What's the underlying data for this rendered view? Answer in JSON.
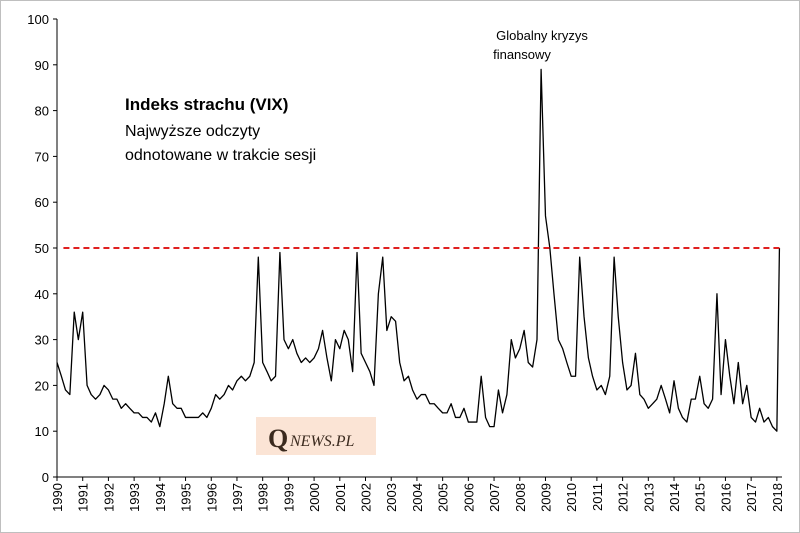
{
  "chart_data": {
    "type": "line",
    "title": "Indeks strachu (VIX)",
    "subtitle": [
      "Najwyższe odczyty",
      "odnotowane w trakcie sesji"
    ],
    "annotation": [
      "Globalny kryzys",
      "finansowy"
    ],
    "logo": {
      "initial": "Q",
      "rest": "NEWS.PL"
    },
    "x": [
      1990,
      1990.17,
      1990.33,
      1990.5,
      1990.67,
      1990.83,
      1991,
      1991.17,
      1991.33,
      1991.5,
      1991.67,
      1991.83,
      1992,
      1992.17,
      1992.33,
      1992.5,
      1992.67,
      1992.83,
      1993,
      1993.17,
      1993.33,
      1993.5,
      1993.67,
      1993.83,
      1994,
      1994.17,
      1994.33,
      1994.5,
      1994.67,
      1994.83,
      1995,
      1995.17,
      1995.33,
      1995.5,
      1995.67,
      1995.83,
      1996,
      1996.17,
      1996.33,
      1996.5,
      1996.67,
      1996.83,
      1997,
      1997.17,
      1997.33,
      1997.5,
      1997.67,
      1997.83,
      1998,
      1998.17,
      1998.33,
      1998.5,
      1998.67,
      1998.83,
      1999,
      1999.17,
      1999.33,
      1999.5,
      1999.67,
      1999.83,
      2000,
      2000.17,
      2000.33,
      2000.5,
      2000.67,
      2000.83,
      2001,
      2001.17,
      2001.33,
      2001.5,
      2001.67,
      2001.83,
      2002,
      2002.17,
      2002.33,
      2002.5,
      2002.67,
      2002.83,
      2003,
      2003.17,
      2003.33,
      2003.5,
      2003.67,
      2003.83,
      2004,
      2004.17,
      2004.33,
      2004.5,
      2004.67,
      2004.83,
      2005,
      2005.17,
      2005.33,
      2005.5,
      2005.67,
      2005.83,
      2006,
      2006.17,
      2006.33,
      2006.5,
      2006.67,
      2006.83,
      2007,
      2007.17,
      2007.33,
      2007.5,
      2007.67,
      2007.83,
      2008,
      2008.17,
      2008.33,
      2008.5,
      2008.67,
      2008.83,
      2009,
      2009.17,
      2009.33,
      2009.5,
      2009.67,
      2009.83,
      2010,
      2010.17,
      2010.33,
      2010.5,
      2010.67,
      2010.83,
      2011,
      2011.17,
      2011.33,
      2011.5,
      2011.67,
      2011.83,
      2012,
      2012.17,
      2012.33,
      2012.5,
      2012.67,
      2012.83,
      2013,
      2013.17,
      2013.33,
      2013.5,
      2013.67,
      2013.83,
      2014,
      2014.17,
      2014.33,
      2014.5,
      2014.67,
      2014.83,
      2015,
      2015.17,
      2015.33,
      2015.5,
      2015.67,
      2015.83,
      2016,
      2016.17,
      2016.33,
      2016.5,
      2016.67,
      2016.83,
      2017,
      2017.17,
      2017.33,
      2017.5,
      2017.67,
      2017.83,
      2018,
      2018.1
    ],
    "series": [
      {
        "name": "VIX",
        "color": "#000000",
        "values": [
          25,
          22,
          19,
          18,
          36,
          30,
          36,
          20,
          18,
          17,
          18,
          20,
          19,
          17,
          17,
          15,
          16,
          15,
          14,
          14,
          13,
          13,
          12,
          14,
          11,
          16,
          22,
          16,
          15,
          15,
          13,
          13,
          13,
          13,
          14,
          13,
          15,
          18,
          17,
          18,
          20,
          19,
          21,
          22,
          21,
          22,
          25,
          48,
          25,
          23,
          21,
          22,
          49,
          30,
          28,
          30,
          27,
          25,
          26,
          25,
          26,
          28,
          32,
          26,
          21,
          30,
          28,
          32,
          30,
          23,
          49,
          27,
          25,
          23,
          20,
          40,
          48,
          32,
          35,
          34,
          25,
          21,
          22,
          19,
          17,
          18,
          18,
          16,
          16,
          15,
          14,
          14,
          16,
          13,
          13,
          15,
          12,
          12,
          12,
          22,
          13,
          11,
          11,
          19,
          14,
          18,
          30,
          26,
          28,
          32,
          25,
          24,
          30,
          89,
          57,
          50,
          40,
          30,
          28,
          25,
          22,
          22,
          48,
          35,
          26,
          22,
          19,
          20,
          18,
          22,
          48,
          35,
          25,
          19,
          20,
          27,
          18,
          17,
          15,
          16,
          17,
          20,
          17,
          14,
          21,
          15,
          13,
          12,
          17,
          17,
          22,
          16,
          15,
          17,
          40,
          18,
          30,
          22,
          16,
          25,
          16,
          20,
          13,
          12,
          15,
          12,
          13,
          11,
          10,
          50
        ]
      }
    ],
    "reference_line": {
      "value": 50,
      "color": "#e02020",
      "x_range": [
        1990.25,
        2018.1
      ]
    },
    "xlim": [
      1990,
      2018.2
    ],
    "xticks": [
      1990,
      1991,
      1992,
      1993,
      1994,
      1995,
      1996,
      1997,
      1998,
      1999,
      2000,
      2001,
      2002,
      2003,
      2004,
      2005,
      2006,
      2007,
      2008,
      2009,
      2010,
      2011,
      2012,
      2013,
      2014,
      2015,
      2016,
      2017,
      2018
    ],
    "ylim": [
      0,
      100
    ],
    "yticks": [
      0,
      10,
      20,
      30,
      40,
      50,
      60,
      70,
      80,
      90,
      100
    ],
    "grid": false
  }
}
